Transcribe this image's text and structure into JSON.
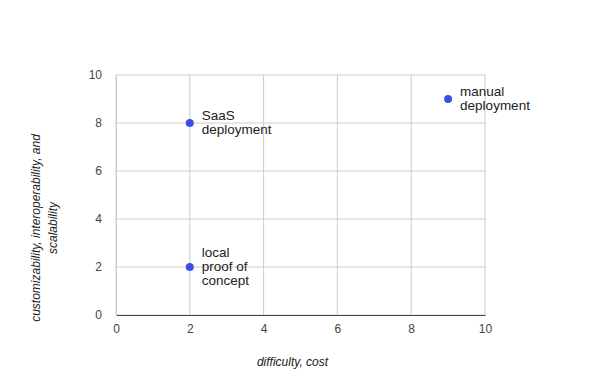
{
  "chart_data": {
    "type": "scatter",
    "x_label": "difficulty, cost",
    "y_label": [
      "customizability, interoperability, and",
      "scalability"
    ],
    "x": [
      2,
      9,
      2
    ],
    "values": [
      8,
      9,
      2
    ],
    "point_labels": [
      [
        "SaaS",
        "deployment"
      ],
      [
        "manual",
        "deployment"
      ],
      [
        "local",
        "proof of",
        "concept"
      ]
    ],
    "color": "#3b4fe4",
    "marker": "circle",
    "xlim": [
      0,
      10
    ],
    "xticks": [
      0,
      2,
      4,
      6,
      8,
      10
    ],
    "ylim": [
      0,
      10
    ],
    "yticks": [
      0,
      2,
      4,
      6,
      8,
      10
    ],
    "grid": true
  }
}
